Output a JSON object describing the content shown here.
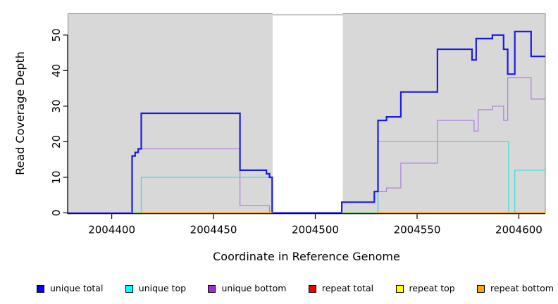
{
  "figure": {
    "background": "#ffffff",
    "panel_background": "#d8d8d8",
    "panel_border": "#8c8c8c",
    "axis_color": "#000000"
  },
  "chart_data": {
    "type": "line",
    "step": true,
    "title": "",
    "xlabel": "Coordinate in Reference Genome",
    "ylabel": "Read Coverage Depth",
    "xlim": [
      2004378.5,
      2004613
    ],
    "ylim": [
      0,
      56
    ],
    "x_ticks": [
      2004400,
      2004450,
      2004500,
      2004550,
      2004600
    ],
    "y_ticks": [
      0,
      10,
      20,
      30,
      40,
      50
    ],
    "grid": false,
    "legend_position": "bottom",
    "highlight_band": {
      "x0": 2004479,
      "x1": 2004513.5,
      "color": "#ffffff"
    },
    "series": [
      {
        "name": "repeat total",
        "color": "#ee0000",
        "width": 1.3,
        "points": [
          [
            2004378.5,
            0
          ]
        ]
      },
      {
        "name": "repeat top",
        "color": "#ffff00",
        "width": 1.3,
        "points": [
          [
            2004378.5,
            0
          ]
        ]
      },
      {
        "name": "repeat bottom",
        "color": "#ffa500",
        "width": 1.8,
        "points": [
          [
            2004378.5,
            0
          ]
        ]
      },
      {
        "name": "unique bottom",
        "color": "#b284dc",
        "width": 1.3,
        "points": [
          [
            2004378.5,
            0
          ],
          [
            2004410,
            16
          ],
          [
            2004411.5,
            17
          ],
          [
            2004413,
            18
          ],
          [
            2004463,
            2
          ],
          [
            2004477.5,
            0
          ],
          [
            2004530.8,
            6
          ],
          [
            2004535,
            7
          ],
          [
            2004542,
            14
          ],
          [
            2004560,
            26
          ],
          [
            2004578,
            23
          ],
          [
            2004580,
            29
          ],
          [
            2004587,
            30
          ],
          [
            2004592.5,
            26
          ],
          [
            2004594.5,
            38
          ],
          [
            2004606,
            32
          ]
        ]
      },
      {
        "name": "unique top",
        "color": "#3fdede",
        "width": 1.3,
        "points": [
          [
            2004378.5,
            0
          ],
          [
            2004414.5,
            10
          ],
          [
            2004478.8,
            0
          ],
          [
            2004530.8,
            20
          ],
          [
            2004595,
            0
          ],
          [
            2004598,
            12
          ]
        ]
      },
      {
        "name": "unique total",
        "color": "#1a1ae6",
        "width": 2.2,
        "points": [
          [
            2004378.5,
            0
          ],
          [
            2004410,
            16
          ],
          [
            2004411.5,
            17
          ],
          [
            2004413,
            18
          ],
          [
            2004414.5,
            28
          ],
          [
            2004463,
            12
          ],
          [
            2004476,
            11
          ],
          [
            2004477.5,
            10
          ],
          [
            2004478.8,
            0
          ],
          [
            2004513,
            3
          ],
          [
            2004529,
            6
          ],
          [
            2004530.8,
            26
          ],
          [
            2004535,
            27
          ],
          [
            2004542,
            34
          ],
          [
            2004560,
            46
          ],
          [
            2004577,
            43
          ],
          [
            2004579,
            49
          ],
          [
            2004587,
            50
          ],
          [
            2004592.5,
            46
          ],
          [
            2004594.5,
            39
          ],
          [
            2004598,
            51
          ],
          [
            2004606,
            44
          ]
        ]
      }
    ],
    "baseline_segments": [
      {
        "x0": 2004378.5,
        "x1": 2004410.5,
        "color": "#6a5ae0"
      },
      {
        "x0": 2004410.5,
        "x1": 2004414.5,
        "color": "#7cc87f"
      },
      {
        "x0": 2004414.5,
        "x1": 2004479.0,
        "color": "#ffa500"
      },
      {
        "x0": 2004479.0,
        "x1": 2004513.0,
        "color": "#2a2ae6"
      },
      {
        "x0": 2004513.0,
        "x1": 2004530.8,
        "color": "#7cc87f"
      },
      {
        "x0": 2004530.8,
        "x1": 2004613.0,
        "color": "#ffa500"
      }
    ]
  },
  "legend": {
    "items": [
      {
        "label": "unique total",
        "color": "#0000ee"
      },
      {
        "label": "unique top",
        "color": "#00ffff"
      },
      {
        "label": "unique bottom",
        "color": "#9932cc"
      },
      {
        "label": "repeat total",
        "color": "#ee0000"
      },
      {
        "label": "repeat top",
        "color": "#ffff00"
      },
      {
        "label": "repeat bottom",
        "color": "#ffa500"
      }
    ]
  }
}
